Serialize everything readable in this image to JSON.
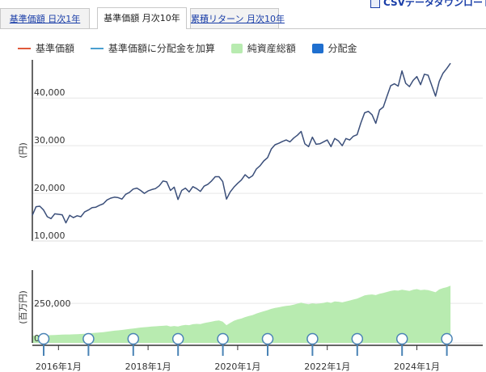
{
  "tabs": [
    {
      "label": "基準価額 日次1年",
      "active": false
    },
    {
      "label": "基準価額 月次10年",
      "active": true
    },
    {
      "label": "累積リターン 月次10年",
      "active": false
    }
  ],
  "csv_label": "CSVデータダウンロード",
  "legend": [
    {
      "label": "基準価額",
      "color": "#e0593b",
      "kind": "line"
    },
    {
      "label": "基準価額に分配金を加算",
      "color": "#4a9fd0",
      "kind": "line"
    },
    {
      "label": "純資産総額",
      "color": "#b8ebb0",
      "kind": "box"
    },
    {
      "label": "分配金",
      "color": "#1f6fcf",
      "kind": "box"
    }
  ],
  "colors": {
    "nav_line": "#3b4f7a",
    "area_fill": "#b8ebb0",
    "axis": "#333333",
    "grid": "#e6e6e6",
    "marker_stroke": "#4a83b5"
  },
  "chart_data": [
    {
      "type": "line",
      "ylabel": "(円)",
      "yticks": [
        10000,
        20000,
        30000,
        40000
      ],
      "ytick_labels": [
        "10,000",
        "20,000",
        "30,000",
        "40,000"
      ],
      "ylim": [
        10000,
        47000
      ],
      "x_start": "2015-06",
      "x_end": "2025-06",
      "xtick_labels": [
        "2016年1月",
        "2018年1月",
        "2020年1月",
        "2022年1月",
        "2024年1月"
      ],
      "xtick_dates": [
        "2016-01",
        "2018-01",
        "2020-01",
        "2022-01",
        "2024-01"
      ],
      "series": [
        {
          "name": "基準価額",
          "start": "2015-06",
          "values": [
            15400,
            17200,
            17300,
            16500,
            15100,
            14700,
            15700,
            15600,
            15500,
            13800,
            15400,
            14900,
            15300,
            15100,
            16100,
            16500,
            17000,
            17100,
            17500,
            17800,
            18600,
            19000,
            19200,
            19100,
            18800,
            19800,
            20200,
            20900,
            21100,
            20600,
            20000,
            20500,
            20800,
            21000,
            21600,
            22600,
            22400,
            20600,
            21300,
            18700,
            20600,
            21100,
            20300,
            21400,
            21000,
            20400,
            21500,
            21900,
            22600,
            23500,
            23500,
            22500,
            18800,
            20300,
            21300,
            22100,
            22800,
            23900,
            23200,
            23700,
            25100,
            25800,
            26800,
            27500,
            29300,
            30200,
            30500,
            30900,
            31200,
            30800,
            31600,
            32200,
            33000,
            30400,
            29800,
            31800,
            30300,
            30400,
            30800,
            31200,
            29800,
            31500,
            31000,
            30000,
            31500,
            31200,
            32000,
            32300,
            34800,
            36900,
            37200,
            36500,
            34700,
            37500,
            38100,
            40400,
            42600,
            43000,
            42500,
            45700,
            43100,
            42400,
            43700,
            44500,
            42800,
            45000,
            44800,
            42600,
            40400,
            43500,
            45200,
            46200,
            47300
          ]
        }
      ]
    },
    {
      "type": "area",
      "ylabel": "(百万円)",
      "yticks": [
        0,
        250000
      ],
      "ytick_labels": [
        "0",
        "250,000"
      ],
      "ylim": [
        0,
        460000
      ],
      "x_start": "2015-06",
      "x_end": "2025-06",
      "series": [
        {
          "name": "純資産総額",
          "start": "2015-06",
          "values": [
            45000,
            47000,
            48000,
            47000,
            48000,
            49000,
            50000,
            51000,
            52000,
            53000,
            53000,
            54000,
            55000,
            56000,
            58000,
            60000,
            62000,
            64000,
            66000,
            68000,
            71000,
            74000,
            77000,
            79000,
            82000,
            85000,
            88000,
            91000,
            94000,
            97000,
            99000,
            101000,
            103000,
            105000,
            107000,
            108000,
            110000,
            104000,
            107000,
            103000,
            110000,
            114000,
            112000,
            118000,
            120000,
            119000,
            125000,
            130000,
            134000,
            139000,
            142000,
            134000,
            112000,
            126000,
            140000,
            148000,
            154000,
            163000,
            170000,
            176000,
            185000,
            193000,
            200000,
            207000,
            215000,
            221000,
            225000,
            230000,
            234000,
            236000,
            242000,
            248000,
            254000,
            248000,
            244000,
            250000,
            247000,
            249000,
            253000,
            258000,
            253000,
            262000,
            260000,
            256000,
            262000,
            268000,
            274000,
            280000,
            290000,
            300000,
            304000,
            306000,
            302000,
            311000,
            316000,
            322000,
            328000,
            332000,
            330000,
            336000,
            332000,
            328000,
            336000,
            340000,
            334000,
            336000,
            333000,
            327000,
            320000,
            338000,
            346000,
            352000,
            362000
          ]
        }
      ],
      "distribution_markers": [
        "2015-06",
        "2016-06",
        "2017-06",
        "2018-06",
        "2019-06",
        "2020-06",
        "2021-06",
        "2022-06",
        "2023-06",
        "2024-06"
      ]
    }
  ]
}
